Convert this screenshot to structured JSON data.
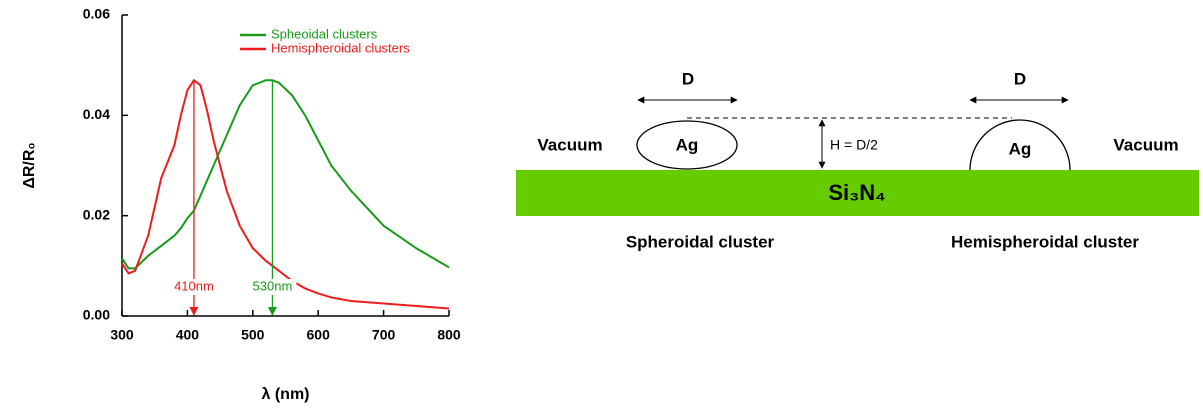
{
  "chart_data": {
    "type": "line",
    "xlabel": "λ (nm)",
    "ylabel": "ΔR/R₀",
    "x": [
      300,
      310,
      320,
      340,
      360,
      380,
      390,
      400,
      410,
      420,
      430,
      440,
      460,
      480,
      500,
      520,
      530,
      540,
      560,
      580,
      600,
      620,
      650,
      700,
      750,
      800
    ],
    "series": [
      {
        "name": "Spheoidal clusters",
        "color": "#1a9a1a",
        "values": [
          0.0115,
          0.0095,
          0.0095,
          0.012,
          0.014,
          0.016,
          0.0175,
          0.0195,
          0.021,
          0.024,
          0.027,
          0.03,
          0.036,
          0.042,
          0.046,
          0.047,
          0.047,
          0.0465,
          0.044,
          0.04,
          0.035,
          0.03,
          0.025,
          0.018,
          0.0135,
          0.0097
        ]
      },
      {
        "name": "Hemispheroidal clusters",
        "color": "#ee1c1c",
        "values": [
          0.0105,
          0.0085,
          0.009,
          0.016,
          0.0275,
          0.034,
          0.04,
          0.045,
          0.047,
          0.046,
          0.041,
          0.035,
          0.025,
          0.018,
          0.0135,
          0.011,
          0.01,
          0.009,
          0.007,
          0.0055,
          0.0045,
          0.0037,
          0.003,
          0.0025,
          0.002,
          0.0015
        ]
      }
    ],
    "annotations": [
      {
        "label": "410nm",
        "x": 410,
        "y": 0.047,
        "color": "#ee1c1c"
      },
      {
        "label": "530nm",
        "x": 530,
        "y": 0.047,
        "color": "#1a9a1a"
      }
    ],
    "xlim": [
      300,
      800
    ],
    "xticks": [
      300,
      400,
      500,
      600,
      700,
      800
    ],
    "ylim": [
      0,
      0.06
    ],
    "yticks": [
      {
        "value": 0,
        "label": "0.00"
      },
      {
        "value": 0.02,
        "label": "0.02"
      },
      {
        "value": 0.04,
        "label": "0.04"
      },
      {
        "value": 0.06,
        "label": "0.06"
      }
    ],
    "grid": false,
    "legend": "upper right"
  },
  "diagram": {
    "substrate": "Si₃N₄",
    "left": {
      "width": "D",
      "particle": "Ag",
      "medium": "Vacuum",
      "caption": "Spheroidal cluster"
    },
    "right": {
      "width": "D",
      "particle": "Ag",
      "medium": "Vacuum",
      "caption": "Hemispheroidal cluster"
    },
    "height": "H = D/2"
  }
}
